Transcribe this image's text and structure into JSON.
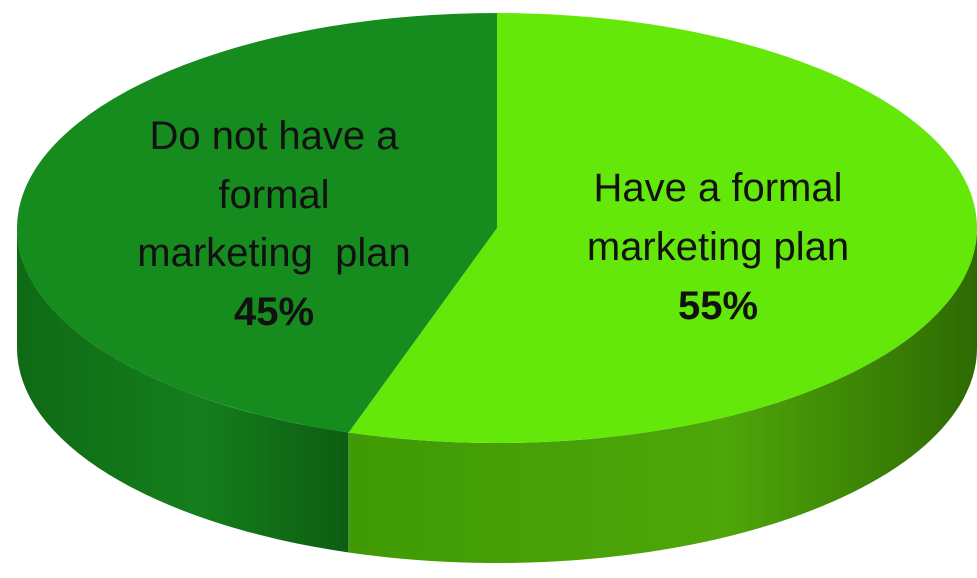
{
  "chart_data": {
    "type": "pie",
    "style": "3d",
    "title": "",
    "slices": [
      {
        "label_lines": [
          "Have a formal",
          "marketing plan"
        ],
        "value": 55,
        "value_label": "55%",
        "color": "#64E80A",
        "side_color_light": "#4CB007",
        "side_color_dark": "#2F6E04"
      },
      {
        "label_lines": [
          "Do not have a",
          "formal",
          "marketing  plan"
        ],
        "value": 45,
        "value_label": "45%",
        "color": "#168C1E",
        "side_color_light": "#137A1A",
        "side_color_dark": "#0C5A12"
      }
    ],
    "legend": "none",
    "grid": false
  }
}
